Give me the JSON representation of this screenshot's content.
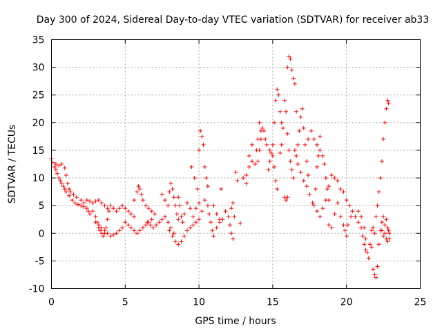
{
  "chart_data": {
    "type": "scatter",
    "title": "Day 300 of 2024, Sidereal Day-to-day VTEC variation (SDTVAR) for receiver ab33",
    "xlabel": "GPS time / hours",
    "ylabel": "SDTVAR / TECUs",
    "xlim": [
      0,
      25
    ],
    "ylim": [
      -10,
      35
    ],
    "xticks": [
      "0",
      "5",
      "10",
      "15",
      "20",
      "25"
    ],
    "yticks": [
      "-10",
      "-5",
      "0",
      "5",
      "10",
      "15",
      "20",
      "25",
      "30",
      "35"
    ],
    "grid": true,
    "marker": "plus",
    "color": "#ff0000",
    "series": [
      {
        "name": "SDTVAR",
        "points": [
          [
            0.0,
            13.5
          ],
          [
            0.1,
            12.8
          ],
          [
            0.2,
            12.0
          ],
          [
            0.3,
            11.5
          ],
          [
            0.4,
            10.8
          ],
          [
            0.5,
            10.0
          ],
          [
            0.6,
            9.5
          ],
          [
            0.7,
            9.0
          ],
          [
            0.8,
            8.5
          ],
          [
            0.9,
            8.0
          ],
          [
            0.3,
            12.5
          ],
          [
            0.5,
            12.2
          ],
          [
            0.7,
            12.5
          ],
          [
            0.9,
            11.8
          ],
          [
            1.0,
            10.5
          ],
          [
            1.1,
            9.0
          ],
          [
            1.2,
            8.0
          ],
          [
            1.3,
            7.5
          ],
          [
            1.5,
            7.0
          ],
          [
            1.7,
            6.5
          ],
          [
            1.0,
            7.5
          ],
          [
            1.2,
            6.8
          ],
          [
            1.4,
            6.0
          ],
          [
            1.6,
            5.5
          ],
          [
            1.8,
            5.2
          ],
          [
            2.0,
            5.0
          ],
          [
            2.2,
            4.8
          ],
          [
            2.4,
            4.5
          ],
          [
            2.5,
            4.0
          ],
          [
            2.6,
            3.5
          ],
          [
            2.0,
            6.0
          ],
          [
            2.2,
            5.5
          ],
          [
            2.4,
            6.0
          ],
          [
            2.6,
            5.8
          ],
          [
            2.8,
            5.5
          ],
          [
            3.0,
            5.8
          ],
          [
            3.2,
            6.0
          ],
          [
            3.4,
            5.5
          ],
          [
            3.6,
            5.0
          ],
          [
            3.8,
            4.5
          ],
          [
            2.8,
            4.0
          ],
          [
            3.0,
            3.0
          ],
          [
            3.1,
            2.0
          ],
          [
            3.2,
            1.0
          ],
          [
            3.3,
            0.5
          ],
          [
            3.4,
            0.0
          ],
          [
            3.5,
            -0.5
          ],
          [
            3.6,
            0.0
          ],
          [
            3.7,
            1.0
          ],
          [
            3.8,
            2.5
          ],
          [
            3.0,
            2.0
          ],
          [
            3.2,
            1.5
          ],
          [
            3.4,
            1.0
          ],
          [
            3.6,
            0.5
          ],
          [
            3.8,
            0.0
          ],
          [
            4.0,
            -0.5
          ],
          [
            4.2,
            -0.3
          ],
          [
            4.4,
            0.0
          ],
          [
            4.6,
            0.5
          ],
          [
            4.8,
            1.0
          ],
          [
            3.9,
            4.0
          ],
          [
            4.0,
            5.0
          ],
          [
            4.2,
            4.5
          ],
          [
            4.4,
            4.0
          ],
          [
            4.6,
            4.5
          ],
          [
            4.8,
            5.0
          ],
          [
            5.0,
            4.5
          ],
          [
            5.2,
            4.0
          ],
          [
            5.4,
            3.5
          ],
          [
            5.6,
            3.0
          ],
          [
            5.0,
            2.0
          ],
          [
            5.2,
            1.5
          ],
          [
            5.4,
            1.0
          ],
          [
            5.6,
            0.5
          ],
          [
            5.8,
            0.0
          ],
          [
            6.0,
            0.5
          ],
          [
            6.2,
            1.0
          ],
          [
            6.4,
            1.5
          ],
          [
            6.6,
            2.0
          ],
          [
            6.8,
            2.5
          ],
          [
            5.6,
            6.0
          ],
          [
            5.8,
            7.5
          ],
          [
            5.9,
            8.5
          ],
          [
            6.0,
            8.0
          ],
          [
            6.1,
            7.0
          ],
          [
            6.2,
            6.0
          ],
          [
            6.4,
            5.0
          ],
          [
            6.6,
            4.5
          ],
          [
            6.8,
            4.0
          ],
          [
            7.0,
            3.5
          ],
          [
            6.5,
            2.0
          ],
          [
            6.7,
            1.5
          ],
          [
            6.9,
            1.0
          ],
          [
            7.1,
            1.5
          ],
          [
            7.3,
            2.0
          ],
          [
            7.5,
            2.5
          ],
          [
            7.7,
            3.0
          ],
          [
            7.9,
            2.0
          ],
          [
            8.1,
            1.0
          ],
          [
            8.3,
            0.0
          ],
          [
            7.5,
            7.0
          ],
          [
            7.7,
            6.0
          ],
          [
            7.9,
            5.0
          ],
          [
            8.0,
            7.5
          ],
          [
            8.1,
            9.0
          ],
          [
            8.2,
            8.0
          ],
          [
            8.3,
            6.5
          ],
          [
            8.4,
            5.0
          ],
          [
            8.5,
            3.5
          ],
          [
            8.6,
            2.5
          ],
          [
            8.0,
            0.5
          ],
          [
            8.2,
            -0.5
          ],
          [
            8.4,
            -1.5
          ],
          [
            8.6,
            -2.0
          ],
          [
            8.8,
            -1.5
          ],
          [
            9.0,
            -0.5
          ],
          [
            9.2,
            0.5
          ],
          [
            9.4,
            1.0
          ],
          [
            9.6,
            1.5
          ],
          [
            9.8,
            2.0
          ],
          [
            8.6,
            6.5
          ],
          [
            8.7,
            5.0
          ],
          [
            8.8,
            3.0
          ],
          [
            8.9,
            2.0
          ],
          [
            9.0,
            3.5
          ],
          [
            9.2,
            5.5
          ],
          [
            9.4,
            4.5
          ],
          [
            9.6,
            3.0
          ],
          [
            9.8,
            4.5
          ],
          [
            10.0,
            5.5
          ],
          [
            9.5,
            12.0
          ],
          [
            9.7,
            10.0
          ],
          [
            9.9,
            8.0
          ],
          [
            10.0,
            15.0
          ],
          [
            10.1,
            18.5
          ],
          [
            10.2,
            17.5
          ],
          [
            10.3,
            16.0
          ],
          [
            10.4,
            12.0
          ],
          [
            10.5,
            10.0
          ],
          [
            10.6,
            8.5
          ],
          [
            10.0,
            2.5
          ],
          [
            10.2,
            4.0
          ],
          [
            10.4,
            6.0
          ],
          [
            10.6,
            5.0
          ],
          [
            10.7,
            3.5
          ],
          [
            10.8,
            2.0
          ],
          [
            10.9,
            0.5
          ],
          [
            11.0,
            -0.5
          ],
          [
            11.2,
            1.0
          ],
          [
            11.4,
            2.5
          ],
          [
            11.0,
            5.0
          ],
          [
            11.2,
            3.5
          ],
          [
            11.4,
            2.0
          ],
          [
            11.6,
            2.5
          ],
          [
            11.8,
            4.0
          ],
          [
            12.0,
            3.0
          ],
          [
            12.1,
            1.5
          ],
          [
            12.2,
            0.0
          ],
          [
            12.3,
            -1.0
          ],
          [
            12.4,
            3.0
          ],
          [
            11.5,
            8.0
          ],
          [
            12.2,
            4.5
          ],
          [
            12.3,
            5.5
          ],
          [
            12.5,
            11.0
          ],
          [
            12.6,
            9.5
          ],
          [
            12.8,
            1.8
          ],
          [
            13.0,
            10.0
          ],
          [
            13.2,
            9.0
          ],
          [
            13.4,
            12.0
          ],
          [
            13.6,
            16.0
          ],
          [
            13.2,
            10.5
          ],
          [
            13.4,
            14.0
          ],
          [
            13.6,
            13.0
          ],
          [
            13.8,
            12.5
          ],
          [
            14.0,
            13.0
          ],
          [
            14.1,
            15.0
          ],
          [
            14.2,
            17.0
          ],
          [
            14.3,
            19.0
          ],
          [
            14.4,
            18.5
          ],
          [
            14.5,
            17.0
          ],
          [
            13.9,
            15.0
          ],
          [
            14.0,
            17.0
          ],
          [
            14.1,
            20.0
          ],
          [
            14.2,
            18.5
          ],
          [
            14.6,
            16.0
          ],
          [
            14.8,
            15.0
          ],
          [
            15.0,
            14.0
          ],
          [
            15.1,
            12.0
          ],
          [
            15.2,
            9.5
          ],
          [
            15.3,
            8.0
          ],
          [
            14.7,
            11.5
          ],
          [
            14.8,
            13.0
          ],
          [
            14.9,
            14.5
          ],
          [
            15.0,
            16.0
          ],
          [
            15.1,
            20.0
          ],
          [
            15.2,
            24.0
          ],
          [
            15.3,
            26.0
          ],
          [
            15.4,
            25.0
          ],
          [
            15.5,
            22.0
          ],
          [
            15.6,
            20.0
          ],
          [
            15.5,
            14.5
          ],
          [
            15.6,
            16.0
          ],
          [
            15.7,
            19.0
          ],
          [
            15.8,
            24.0
          ],
          [
            15.9,
            22.0
          ],
          [
            16.0,
            18.0
          ],
          [
            16.1,
            15.0
          ],
          [
            16.2,
            13.0
          ],
          [
            16.3,
            11.5
          ],
          [
            16.4,
            10.0
          ],
          [
            15.8,
            6.5
          ],
          [
            15.9,
            6.0
          ],
          [
            16.0,
            6.5
          ],
          [
            16.0,
            30.0
          ],
          [
            16.1,
            32.0
          ],
          [
            16.2,
            31.5
          ],
          [
            16.3,
            29.5
          ],
          [
            16.4,
            28.0
          ],
          [
            16.5,
            27.0
          ],
          [
            16.6,
            22.0
          ],
          [
            16.5,
            15.0
          ],
          [
            16.6,
            14.0
          ],
          [
            16.7,
            16.0
          ],
          [
            16.8,
            18.5
          ],
          [
            16.9,
            21.0
          ],
          [
            17.0,
            22.5
          ],
          [
            17.1,
            19.0
          ],
          [
            17.2,
            16.0
          ],
          [
            17.3,
            13.0
          ],
          [
            17.4,
            10.5
          ],
          [
            16.7,
            12.5
          ],
          [
            16.9,
            11.0
          ],
          [
            17.1,
            9.5
          ],
          [
            17.3,
            8.5
          ],
          [
            17.5,
            7.0
          ],
          [
            17.7,
            5.5
          ],
          [
            17.9,
            8.0
          ],
          [
            18.0,
            12.0
          ],
          [
            18.1,
            14.0
          ],
          [
            18.2,
            17.5
          ],
          [
            17.4,
            17.0
          ],
          [
            17.6,
            18.5
          ],
          [
            17.8,
            17.0
          ],
          [
            18.0,
            16.0
          ],
          [
            18.2,
            15.0
          ],
          [
            18.4,
            14.0
          ],
          [
            18.5,
            12.5
          ],
          [
            18.6,
            10.0
          ],
          [
            18.7,
            8.0
          ],
          [
            18.8,
            6.0
          ],
          [
            17.8,
            5.0
          ],
          [
            18.0,
            4.0
          ],
          [
            18.2,
            3.0
          ],
          [
            18.4,
            4.5
          ],
          [
            18.6,
            6.0
          ],
          [
            18.8,
            8.5
          ],
          [
            19.0,
            10.5
          ],
          [
            19.2,
            10.0
          ],
          [
            19.4,
            9.5
          ],
          [
            19.6,
            8.0
          ],
          [
            18.8,
            1.5
          ],
          [
            19.0,
            1.0
          ],
          [
            19.2,
            3.5
          ],
          [
            19.4,
            5.5
          ],
          [
            19.6,
            3.0
          ],
          [
            19.8,
            1.5
          ],
          [
            19.9,
            0.5
          ],
          [
            20.0,
            -0.5
          ],
          [
            20.1,
            1.5
          ],
          [
            20.3,
            3.0
          ],
          [
            19.8,
            7.5
          ],
          [
            20.0,
            6.0
          ],
          [
            20.2,
            5.0
          ],
          [
            20.4,
            4.0
          ],
          [
            20.6,
            3.0
          ],
          [
            20.8,
            2.0
          ],
          [
            21.0,
            1.0
          ],
          [
            21.1,
            -0.5
          ],
          [
            21.2,
            -2.0
          ],
          [
            21.3,
            -3.0
          ],
          [
            20.8,
            4.0
          ],
          [
            21.0,
            3.0
          ],
          [
            21.2,
            1.0
          ],
          [
            21.3,
            -1.0
          ],
          [
            21.4,
            -3.5
          ],
          [
            21.5,
            -4.5
          ],
          [
            21.6,
            -2.0
          ],
          [
            21.7,
            0.5
          ],
          [
            21.8,
            1.0
          ],
          [
            21.9,
            0.0
          ],
          [
            21.7,
            -2.5
          ],
          [
            21.8,
            -6.5
          ],
          [
            21.9,
            -7.5
          ],
          [
            22.0,
            -8.0
          ],
          [
            22.1,
            -6.0
          ],
          [
            22.2,
            -2.0
          ],
          [
            22.3,
            0.5
          ],
          [
            22.4,
            2.0
          ],
          [
            22.5,
            3.0
          ],
          [
            22.6,
            1.5
          ],
          [
            22.0,
            3.0
          ],
          [
            22.1,
            5.0
          ],
          [
            22.2,
            7.5
          ],
          [
            22.3,
            10.0
          ],
          [
            22.4,
            13.0
          ],
          [
            22.5,
            17.0
          ],
          [
            22.6,
            20.0
          ],
          [
            22.7,
            22.5
          ],
          [
            22.8,
            24.0
          ],
          [
            22.85,
            23.5
          ],
          [
            22.4,
            0.5
          ],
          [
            22.5,
            -0.5
          ],
          [
            22.6,
            0.0
          ],
          [
            22.7,
            -1.0
          ],
          [
            22.8,
            -1.5
          ],
          [
            22.9,
            0.0
          ],
          [
            22.7,
            2.5
          ],
          [
            22.8,
            1.0
          ],
          [
            22.9,
            -1.0
          ],
          [
            22.85,
            0.5
          ]
        ]
      }
    ]
  }
}
